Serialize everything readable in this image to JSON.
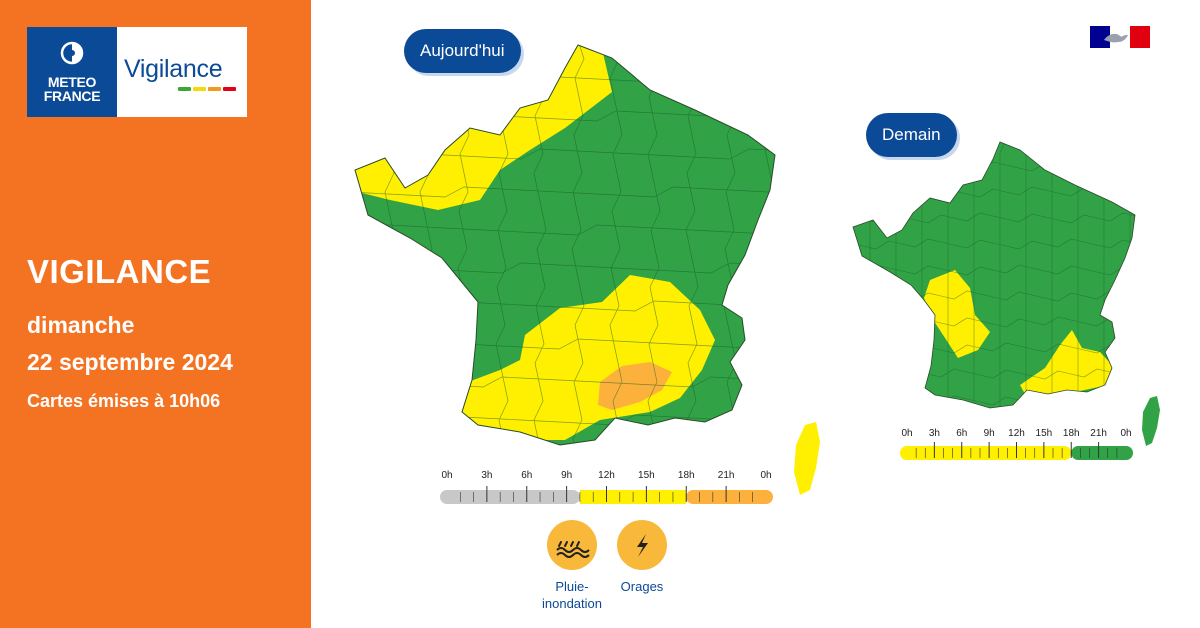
{
  "brand": {
    "logo_line1": "METEO",
    "logo_line2": "FRANCE",
    "product": "Vigilance",
    "stripe_colors": [
      "#3aa935",
      "#f5d90a",
      "#f19a1c",
      "#e3001b"
    ]
  },
  "left_panel": {
    "background": "#f47323",
    "heading": "VIGILANCE",
    "day": "dimanche",
    "date": "22 septembre 2024",
    "issued": "Cartes émises à 10h06"
  },
  "colors": {
    "green": "#31a346",
    "yellow": "#ffef00",
    "orange": "#fbb13c",
    "gray": "#c8c8c8",
    "navy": "#0b4a96"
  },
  "maps": {
    "today": {
      "label": "Aujourd'hui",
      "timeline": {
        "ticks": [
          "0h",
          "3h",
          "6h",
          "9h",
          "12h",
          "15h",
          "18h",
          "21h",
          "0h"
        ],
        "segments": [
          {
            "from": 0,
            "to": 10,
            "level": "gray"
          },
          {
            "from": 10,
            "to": 18,
            "level": "yellow"
          },
          {
            "from": 18,
            "to": 24,
            "level": "orange"
          }
        ]
      }
    },
    "tomorrow": {
      "label": "Demain",
      "timeline": {
        "ticks": [
          "0h",
          "3h",
          "6h",
          "9h",
          "12h",
          "15h",
          "18h",
          "21h",
          "0h"
        ],
        "segments": [
          {
            "from": 0,
            "to": 18,
            "level": "yellow"
          },
          {
            "from": 18,
            "to": 24,
            "level": "green"
          }
        ]
      }
    }
  },
  "risks": [
    {
      "name": "Pluie-\ninondation",
      "icon": "rain-flood-icon"
    },
    {
      "name": "Orages",
      "icon": "lightning-icon"
    }
  ]
}
